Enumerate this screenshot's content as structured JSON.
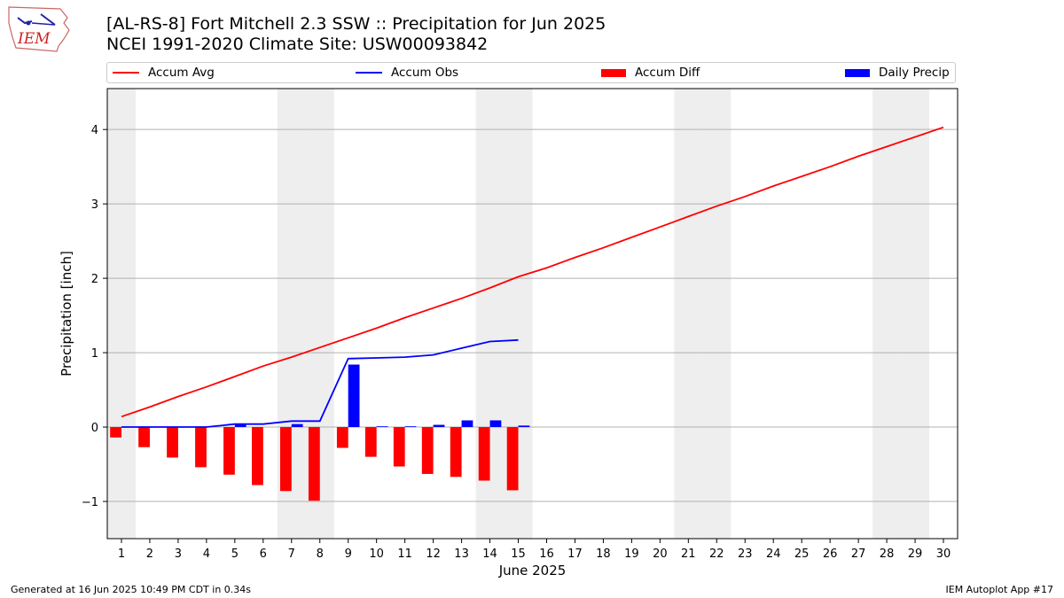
{
  "header": {
    "logo_text": "IEM",
    "title_line1": "[AL-RS-8] Fort Mitchell 2.3 SSW :: Precipitation for Jun 2025",
    "title_line2": "NCEI 1991-2020 Climate Site: USW00093842"
  },
  "colors": {
    "accum_avg": "#ff0000",
    "accum_obs": "#0000ff",
    "accum_diff": "#ff0000",
    "daily_precip": "#0000ff",
    "weekend_shade": "#eeeeee",
    "grid": "#b0b0b0"
  },
  "chart_data": {
    "type": "bar",
    "xlabel": "June 2025",
    "ylabel": "Precipitation [inch]",
    "xlim": [
      0.5,
      30.5
    ],
    "ylim": [
      -1.5,
      4.55
    ],
    "yticks": [
      -1,
      0,
      1,
      2,
      3,
      4
    ],
    "ytick_labels": [
      "−1",
      "0",
      "1",
      "2",
      "3",
      "4"
    ],
    "xticks": [
      1,
      2,
      3,
      4,
      5,
      6,
      7,
      8,
      9,
      10,
      11,
      12,
      13,
      14,
      15,
      16,
      17,
      18,
      19,
      20,
      21,
      22,
      23,
      24,
      25,
      26,
      27,
      28,
      29,
      30
    ],
    "grid": "horizontal",
    "legend_position": "top",
    "weekend_days": [
      1,
      7,
      8,
      14,
      15,
      21,
      22,
      28,
      29
    ],
    "series": [
      {
        "name": "Accum Avg",
        "kind": "line",
        "days": [
          1,
          2,
          3,
          4,
          5,
          6,
          7,
          8,
          9,
          10,
          11,
          12,
          13,
          14,
          15,
          16,
          17,
          18,
          19,
          20,
          21,
          22,
          23,
          24,
          25,
          26,
          27,
          28,
          29,
          30
        ],
        "values": [
          0.14,
          0.27,
          0.41,
          0.54,
          0.68,
          0.82,
          0.94,
          1.07,
          1.2,
          1.33,
          1.47,
          1.6,
          1.73,
          1.87,
          2.02,
          2.14,
          2.28,
          2.41,
          2.55,
          2.69,
          2.83,
          2.97,
          3.1,
          3.24,
          3.37,
          3.5,
          3.64,
          3.77,
          3.9,
          4.03
        ]
      },
      {
        "name": "Accum Obs",
        "kind": "line",
        "days": [
          1,
          2,
          3,
          4,
          5,
          6,
          7,
          8,
          9,
          10,
          11,
          12,
          13,
          14,
          15
        ],
        "values": [
          0.0,
          0.0,
          0.0,
          0.0,
          0.04,
          0.04,
          0.08,
          0.08,
          0.92,
          0.93,
          0.94,
          0.97,
          1.06,
          1.15,
          1.17
        ]
      },
      {
        "name": "Accum Diff",
        "kind": "bar",
        "days": [
          1,
          2,
          3,
          4,
          5,
          6,
          7,
          8,
          9,
          10,
          11,
          12,
          13,
          14,
          15
        ],
        "values": [
          -0.14,
          -0.27,
          -0.41,
          -0.54,
          -0.64,
          -0.78,
          -0.86,
          -0.99,
          -0.28,
          -0.4,
          -0.53,
          -0.63,
          -0.67,
          -0.72,
          -0.85
        ]
      },
      {
        "name": "Daily Precip",
        "kind": "bar",
        "days": [
          1,
          2,
          3,
          4,
          5,
          6,
          7,
          8,
          9,
          10,
          11,
          12,
          13,
          14,
          15
        ],
        "values": [
          0.0,
          0.0,
          0.0,
          0.0,
          0.04,
          0.0,
          0.04,
          0.0,
          0.84,
          0.01,
          0.01,
          0.03,
          0.09,
          0.09,
          0.02
        ]
      }
    ]
  },
  "footer": {
    "left": "Generated at 16 Jun 2025 10:49 PM CDT in 0.34s",
    "right": "IEM Autoplot App #17"
  }
}
